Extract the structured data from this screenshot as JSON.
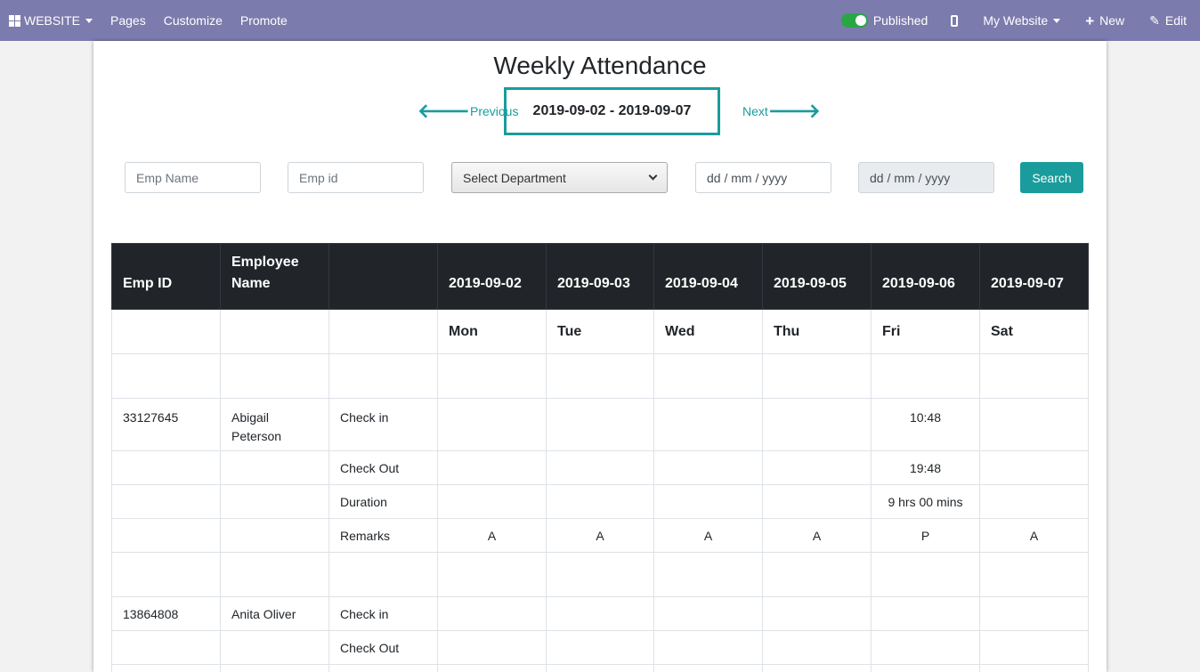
{
  "topbar": {
    "website_label": "WEBSITE",
    "pages_label": "Pages",
    "customize_label": "Customize",
    "promote_label": "Promote",
    "published_label": "Published",
    "my_website_label": "My Website",
    "new_label": "New",
    "edit_label": "Edit"
  },
  "page": {
    "title": "Weekly Attendance",
    "previous_label": "Previous",
    "next_label": "Next",
    "date_range": "2019-09-02 - 2019-09-07"
  },
  "filters": {
    "emp_name_placeholder": "Emp Name",
    "emp_id_placeholder": "Emp id",
    "department_selected": "Select Department",
    "date_from_placeholder": "dd / mm / yyyy",
    "date_to_placeholder": "dd / mm / yyyy",
    "search_label": "Search"
  },
  "table": {
    "headers": [
      "Emp ID",
      "Employee Name",
      "",
      "2019-09-02",
      "2019-09-03",
      "2019-09-04",
      "2019-09-05",
      "2019-09-06",
      "2019-09-07"
    ],
    "days": [
      "Mon",
      "Tue",
      "Wed",
      "Thu",
      "Fri",
      "Sat"
    ],
    "employees": [
      {
        "emp_id": "33127645",
        "name": "Abigail Peterson",
        "rows": [
          {
            "label": "Check in",
            "values": [
              "",
              "",
              "",
              "",
              "10:48",
              ""
            ]
          },
          {
            "label": "Check Out",
            "values": [
              "",
              "",
              "",
              "",
              "19:48",
              ""
            ]
          },
          {
            "label": "Duration",
            "values": [
              "",
              "",
              "",
              "",
              "9 hrs 00 mins",
              ""
            ]
          },
          {
            "label": "Remarks",
            "values": [
              "A",
              "A",
              "A",
              "A",
              "P",
              "A"
            ]
          }
        ]
      },
      {
        "emp_id": "13864808",
        "name": "Anita Oliver",
        "rows": [
          {
            "label": "Check in",
            "values": [
              "",
              "",
              "",
              "",
              "",
              ""
            ]
          },
          {
            "label": "Check Out",
            "values": [
              "",
              "",
              "",
              "",
              "",
              ""
            ]
          }
        ]
      }
    ]
  },
  "colors": {
    "navbar": "#7c7bad",
    "accent": "#1a9c9c",
    "table_header": "#212529"
  }
}
